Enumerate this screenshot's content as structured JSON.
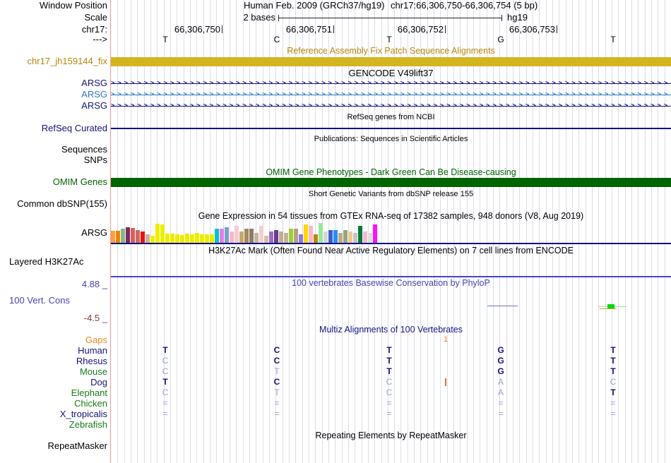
{
  "header": {
    "window_position_label": "Window Position",
    "assembly": "Human Feb. 2009 (GRCh37/hg19)",
    "position_range": "chr17:66,306,750-66,306,754 (5 bp)",
    "scale_label": "Scale",
    "scale_value": "2 bases",
    "assembly_short": "hg19",
    "chrom_label": "chr17:",
    "strand_arrow": "--->",
    "ruler_ticks": [
      "66,306,750",
      "66,306,751",
      "66,306,752",
      "66,306,753"
    ],
    "bases": [
      "T",
      "C",
      "T",
      "G",
      "T"
    ]
  },
  "tracks": {
    "fixpatch": {
      "title": "Reference Assembly Fix Patch Sequence Alignments",
      "label": "chr17_jh159144_fix",
      "bar_color": "#d3b51f"
    },
    "gencode": {
      "title": "GENCODE V49lift37",
      "strand_char": ">",
      "rows": [
        {
          "label": "ARSG",
          "color": "#10127f"
        },
        {
          "label": "ARSG",
          "color": "#2e7cb8"
        },
        {
          "label": "ARSG",
          "color": "#10127f"
        }
      ]
    },
    "refseq": {
      "title": "RefSeq genes from NCBI",
      "label": "RefSeq Curated",
      "line_color": "#10127f"
    },
    "publications": {
      "title": "Publications: Sequences in Scientific Articles",
      "label_sequences": "Sequences",
      "label_snps": "SNPs"
    },
    "omim": {
      "title": "OMIM Gene Phenotypes - Dark Green Can Be Disease-causing",
      "label": "OMIM Genes",
      "bar_color": "#006400"
    },
    "dbsnp": {
      "title": "Short Genetic Variants from dbSNP release 155",
      "label": "Common dbSNP(155)"
    },
    "gtex": {
      "title": "Gene Expression in 54 tissues from GTEx RNA-seq of 17382 samples, 948 donors (V8, Aug 2019)",
      "label": "ARSG"
    },
    "h3k27ac": {
      "title": "H3K27Ac Mark (Often Found Near Active Regulatory Elements) on 7 cell lines from ENCODE",
      "label": "Layered H3K27Ac",
      "line_color": "#4343c9"
    },
    "phylop": {
      "title": "100 vertebrates Basewise Conservation by PhyloP",
      "label": "100 Vert. Cons",
      "max_label": "4.88 _",
      "min_label": "-4.5 _"
    },
    "multiz": {
      "title": "Multiz Alignments of 100 Vertebrates",
      "gap_row": {
        "label": "Gaps",
        "count": "1"
      },
      "species": [
        {
          "label": "Human",
          "clade_color": "navy",
          "cells": [
            [
              "T",
              1
            ],
            [
              "C",
              1
            ],
            [
              "T",
              1
            ],
            [
              "G",
              1
            ],
            [
              "T",
              1
            ]
          ]
        },
        {
          "label": "Rhesus",
          "clade_color": "navy",
          "cells": [
            [
              "C",
              0
            ],
            [
              "C",
              1
            ],
            [
              "T",
              1
            ],
            [
              "G",
              1
            ],
            [
              "T",
              1
            ]
          ]
        },
        {
          "label": "Mouse",
          "clade_color": "green",
          "cells": [
            [
              "C",
              0
            ],
            [
              "T",
              0
            ],
            [
              "T",
              1
            ],
            [
              "G",
              1
            ],
            [
              "T",
              1
            ]
          ]
        },
        {
          "label": "Dog",
          "clade_color": "navy",
          "cells": [
            [
              "T",
              1
            ],
            [
              "C",
              1
            ],
            [
              "C",
              0
            ],
            [
              "A",
              0
            ],
            [
              "C",
              0
            ]
          ]
        },
        {
          "label": "Elephant",
          "clade_color": "green",
          "cells": [
            [
              "C",
              0
            ],
            [
              "T",
              0
            ],
            [
              "C",
              0
            ],
            [
              "A",
              0
            ],
            [
              "T",
              1
            ]
          ]
        },
        {
          "label": "Chicken",
          "clade_color": "green",
          "cells": [
            [
              "=",
              0
            ],
            [
              "=",
              0
            ],
            [
              "=",
              0
            ],
            [
              "=",
              0
            ],
            [
              "=",
              0
            ]
          ]
        },
        {
          "label": "X_tropicalis",
          "clade_color": "navy",
          "cells": [
            [
              "=",
              0
            ],
            [
              "=",
              0
            ],
            [
              "=",
              0
            ],
            [
              "=",
              0
            ],
            [
              "=",
              0
            ]
          ]
        },
        {
          "label": "Zebrafish",
          "clade_color": "green",
          "cells": [
            [
              "",
              0
            ],
            [
              "",
              0
            ],
            [
              "",
              0
            ],
            [
              "",
              0
            ],
            [
              "",
              0
            ]
          ]
        }
      ]
    },
    "repeatmasker": {
      "title": "Repeating Elements by RepeatMasker",
      "label": "RepeatMasker"
    }
  },
  "chart_data": {
    "type": "bar",
    "title": "Gene Expression in 54 tissues from GTEx RNA-seq of 17382 samples, 948 donors (V8, Aug 2019)",
    "gene": "ARSG",
    "units": "bar heights in screen pixels (tissue expression, unlabeled axis)",
    "bars": [
      [
        "#ff9f3d",
        17
      ],
      [
        "#ef8300",
        17
      ],
      [
        "#85b785",
        20
      ],
      [
        "#7c2a62",
        22
      ],
      [
        "#e05c5c",
        21
      ],
      [
        "#c96a62",
        18
      ],
      [
        "#ee1111",
        16
      ],
      [
        "#cbb39b",
        12
      ],
      [
        "#eded00",
        10
      ],
      [
        "#eded00",
        27
      ],
      [
        "#eded00",
        26
      ],
      [
        "#eded00",
        13
      ],
      [
        "#eded00",
        13
      ],
      [
        "#eded00",
        12
      ],
      [
        "#eded00",
        11
      ],
      [
        "#eded00",
        13
      ],
      [
        "#eded00",
        12
      ],
      [
        "#eded00",
        14
      ],
      [
        "#eded00",
        12
      ],
      [
        "#eded00",
        12
      ],
      [
        "#eded00",
        12
      ],
      [
        "#00c5cd",
        20
      ],
      [
        "#e47ee4",
        20
      ],
      [
        "#79a0cd",
        22
      ],
      [
        "#f4b8c8",
        16
      ],
      [
        "#f3cbd4",
        24
      ],
      [
        "#c9a96b",
        16
      ],
      [
        "#a5885c",
        20
      ],
      [
        "#8d7c68",
        20
      ],
      [
        "#c6b49c",
        14
      ],
      [
        "#f2cfcf",
        24
      ],
      [
        "#d5c0a5",
        10
      ],
      [
        "#9b6fc0",
        16
      ],
      [
        "#6a3a92",
        18
      ],
      [
        "#bfae92",
        16
      ],
      [
        "#c4b39a",
        14
      ],
      [
        "#a2cd32",
        20
      ],
      [
        "#b4a181",
        20
      ],
      [
        "#8b79e8",
        12
      ],
      [
        "#ffd700",
        26
      ],
      [
        "#ffb6c8",
        24
      ],
      [
        "#b8860b",
        12
      ],
      [
        "#98e898",
        28
      ],
      [
        "#d5d5d5",
        16
      ],
      [
        "#3a5fcd",
        18
      ],
      [
        "#2090ff",
        18
      ],
      [
        "#c8a878",
        14
      ],
      [
        "#95a585",
        18
      ],
      [
        "#f0c890",
        16
      ],
      [
        "#c4c4c4",
        14
      ],
      [
        "#047a36",
        24
      ],
      [
        "#f8b8d0",
        16
      ],
      [
        "#dcdcdc",
        14
      ],
      [
        "#ff10ff",
        26
      ]
    ]
  }
}
